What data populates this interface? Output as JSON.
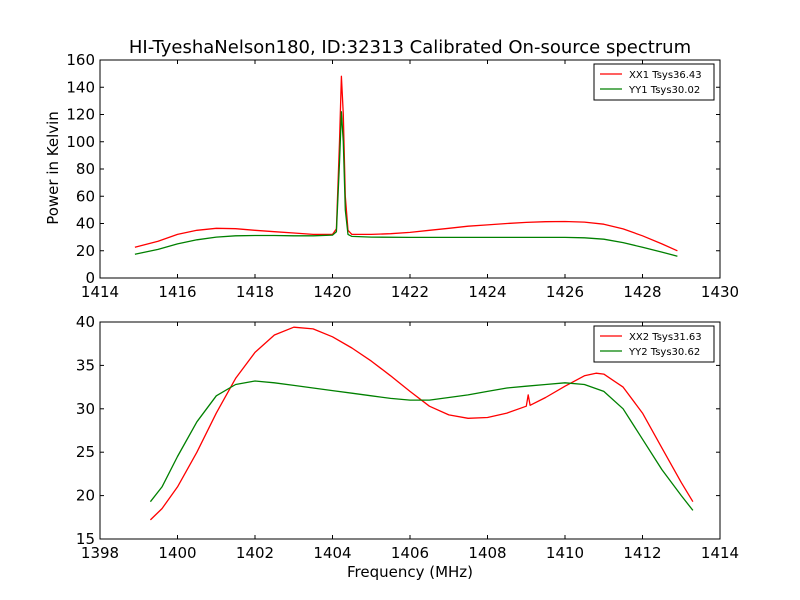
{
  "title": "HI-TyeshaNelson180, ID:32313 Calibrated On-source spectrum",
  "colors": {
    "xx": "#ff0000",
    "yy": "#008000"
  },
  "chart_data": [
    {
      "type": "line",
      "title": "HI-TyeshaNelson180, ID:32313 Calibrated On-source spectrum",
      "xlabel": "",
      "ylabel": "Power in Kelvin",
      "xlim": [
        1414,
        1430
      ],
      "ylim": [
        0,
        160
      ],
      "xticks": [
        1414,
        1416,
        1418,
        1420,
        1422,
        1424,
        1426,
        1428,
        1430
      ],
      "yticks": [
        0,
        20,
        40,
        60,
        80,
        100,
        120,
        140,
        160
      ],
      "legend_position": "top-right",
      "grid": false,
      "series": [
        {
          "name": "XX1 Tsys36.43",
          "color": "#ff0000",
          "points": [
            [
              1414.9,
              22.5
            ],
            [
              1415.5,
              27
            ],
            [
              1416,
              32
            ],
            [
              1416.5,
              35
            ],
            [
              1417,
              36.5
            ],
            [
              1417.5,
              36.2
            ],
            [
              1418,
              35
            ],
            [
              1418.5,
              34
            ],
            [
              1419,
              33
            ],
            [
              1419.5,
              32
            ],
            [
              1420,
              32
            ],
            [
              1420.1,
              36
            ],
            [
              1420.18,
              100
            ],
            [
              1420.23,
              148
            ],
            [
              1420.28,
              120
            ],
            [
              1420.33,
              60
            ],
            [
              1420.4,
              35
            ],
            [
              1420.5,
              32
            ],
            [
              1421,
              32
            ],
            [
              1421.5,
              32.5
            ],
            [
              1422,
              33.5
            ],
            [
              1422.5,
              35
            ],
            [
              1423,
              36.5
            ],
            [
              1423.5,
              38
            ],
            [
              1424,
              39
            ],
            [
              1424.5,
              40
            ],
            [
              1425,
              40.8
            ],
            [
              1425.5,
              41.3
            ],
            [
              1426,
              41.5
            ],
            [
              1426.5,
              41
            ],
            [
              1427,
              39.5
            ],
            [
              1427.5,
              36
            ],
            [
              1428,
              31
            ],
            [
              1428.5,
              25
            ],
            [
              1428.9,
              20
            ]
          ]
        },
        {
          "name": "YY1 Tsys30.02",
          "color": "#008000",
          "points": [
            [
              1414.9,
              17.5
            ],
            [
              1415.5,
              21
            ],
            [
              1416,
              25
            ],
            [
              1416.5,
              28
            ],
            [
              1417,
              30
            ],
            [
              1417.5,
              31
            ],
            [
              1418,
              31.2
            ],
            [
              1418.5,
              31.2
            ],
            [
              1419,
              31
            ],
            [
              1419.5,
              31
            ],
            [
              1420,
              31.5
            ],
            [
              1420.1,
              34
            ],
            [
              1420.18,
              85
            ],
            [
              1420.23,
              122
            ],
            [
              1420.28,
              100
            ],
            [
              1420.33,
              50
            ],
            [
              1420.4,
              32
            ],
            [
              1420.5,
              30.5
            ],
            [
              1421,
              30
            ],
            [
              1422,
              29.8
            ],
            [
              1423,
              29.8
            ],
            [
              1424,
              29.8
            ],
            [
              1425,
              29.8
            ],
            [
              1426,
              29.8
            ],
            [
              1426.5,
              29.5
            ],
            [
              1427,
              28.5
            ],
            [
              1427.5,
              26
            ],
            [
              1428,
              22.5
            ],
            [
              1428.5,
              19
            ],
            [
              1428.9,
              16
            ]
          ]
        }
      ]
    },
    {
      "type": "line",
      "title": "",
      "xlabel": "Frequency (MHz)",
      "ylabel": "",
      "xlim": [
        1398,
        1414
      ],
      "ylim": [
        15,
        40
      ],
      "xticks": [
        1398,
        1400,
        1402,
        1404,
        1406,
        1408,
        1410,
        1412,
        1414
      ],
      "yticks": [
        15,
        20,
        25,
        30,
        35,
        40
      ],
      "legend_position": "top-right",
      "grid": false,
      "series": [
        {
          "name": "XX2 Tsys31.63",
          "color": "#ff0000",
          "points": [
            [
              1399.3,
              17.2
            ],
            [
              1399.6,
              18.5
            ],
            [
              1400,
              21
            ],
            [
              1400.5,
              25
            ],
            [
              1401,
              29.5
            ],
            [
              1401.5,
              33.5
            ],
            [
              1402,
              36.5
            ],
            [
              1402.5,
              38.5
            ],
            [
              1403,
              39.4
            ],
            [
              1403.5,
              39.2
            ],
            [
              1404,
              38.3
            ],
            [
              1404.5,
              37
            ],
            [
              1405,
              35.5
            ],
            [
              1405.5,
              33.8
            ],
            [
              1406,
              32
            ],
            [
              1406.5,
              30.3
            ],
            [
              1407,
              29.3
            ],
            [
              1407.5,
              28.9
            ],
            [
              1408,
              29
            ],
            [
              1408.5,
              29.5
            ],
            [
              1409,
              30.3
            ],
            [
              1409.05,
              31.6
            ],
            [
              1409.1,
              30.4
            ],
            [
              1409.5,
              31.3
            ],
            [
              1410,
              32.6
            ],
            [
              1410.5,
              33.8
            ],
            [
              1410.8,
              34.1
            ],
            [
              1411,
              34
            ],
            [
              1411.5,
              32.5
            ],
            [
              1412,
              29.5
            ],
            [
              1412.5,
              25.5
            ],
            [
              1413,
              21.5
            ],
            [
              1413.3,
              19.3
            ]
          ]
        },
        {
          "name": "YY2 Tsys30.62",
          "color": "#008000",
          "points": [
            [
              1399.3,
              19.3
            ],
            [
              1399.6,
              21
            ],
            [
              1400,
              24.5
            ],
            [
              1400.5,
              28.5
            ],
            [
              1401,
              31.5
            ],
            [
              1401.5,
              32.8
            ],
            [
              1402,
              33.2
            ],
            [
              1402.5,
              33
            ],
            [
              1403,
              32.7
            ],
            [
              1403.5,
              32.4
            ],
            [
              1404,
              32.1
            ],
            [
              1404.5,
              31.8
            ],
            [
              1405,
              31.5
            ],
            [
              1405.5,
              31.2
            ],
            [
              1406,
              31
            ],
            [
              1406.5,
              31
            ],
            [
              1407,
              31.3
            ],
            [
              1407.5,
              31.6
            ],
            [
              1408,
              32
            ],
            [
              1408.5,
              32.4
            ],
            [
              1409,
              32.6
            ],
            [
              1409.5,
              32.8
            ],
            [
              1410,
              33
            ],
            [
              1410.5,
              32.8
            ],
            [
              1411,
              32
            ],
            [
              1411.5,
              30
            ],
            [
              1412,
              26.5
            ],
            [
              1412.5,
              23
            ],
            [
              1413,
              20
            ],
            [
              1413.3,
              18.3
            ]
          ]
        }
      ]
    }
  ]
}
